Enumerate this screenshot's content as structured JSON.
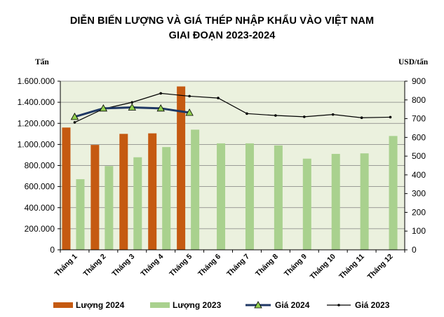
{
  "chart_data": {
    "type": "bar",
    "title": "DIỄN BIẾN LƯỢNG VÀ GIÁ THÉP NHẬP KHẨU VÀO VIỆT NAM",
    "subtitle": "GIAI ĐOẠN 2023-2024",
    "ylabel_left": "Tấn",
    "ylabel_right": "USD/tấn",
    "categories": [
      "Tháng 1",
      "Tháng 2",
      "Tháng 3",
      "Tháng 4",
      "Tháng 5",
      "Tháng 6",
      "Tháng 7",
      "Tháng 8",
      "Tháng 9",
      "Tháng 10",
      "Tháng 11",
      "Tháng 12"
    ],
    "ylim_left": [
      0,
      1600000
    ],
    "ylim_right": [
      0,
      900
    ],
    "left_ticks": [
      "0",
      "200.000",
      "400.000",
      "600.000",
      "800.000",
      "1.000.000",
      "1.200.000",
      "1.400.000",
      "1.600.000"
    ],
    "right_ticks": [
      "0",
      "100",
      "200",
      "300",
      "400",
      "500",
      "600",
      "700",
      "800",
      "900"
    ],
    "grid": true,
    "legend_position": "bottom",
    "series": [
      {
        "name": "Lượng 2024",
        "type": "bar",
        "axis": "left",
        "color": "#c55a11",
        "values": [
          1160000,
          995000,
          1100000,
          1105000,
          1550000,
          null,
          null,
          null,
          null,
          null,
          null,
          null
        ]
      },
      {
        "name": "Lượng 2023",
        "type": "bar",
        "axis": "left",
        "color": "#a9d18e",
        "values": [
          670000,
          795000,
          878000,
          975000,
          1140000,
          1010000,
          1010000,
          990000,
          865000,
          910000,
          915000,
          1080000
        ]
      },
      {
        "name": "Giá 2024",
        "type": "line",
        "axis": "right",
        "color": "#1f3864",
        "marker": "triangle",
        "values": [
          710,
          755,
          760,
          755,
          732,
          null,
          null,
          null,
          null,
          null,
          null,
          null
        ]
      },
      {
        "name": "Giá 2023",
        "type": "line",
        "axis": "right",
        "color": "#000000",
        "marker": "dot",
        "values": [
          680,
          752,
          787,
          835,
          820,
          810,
          727,
          717,
          710,
          722,
          705,
          708
        ]
      }
    ]
  }
}
